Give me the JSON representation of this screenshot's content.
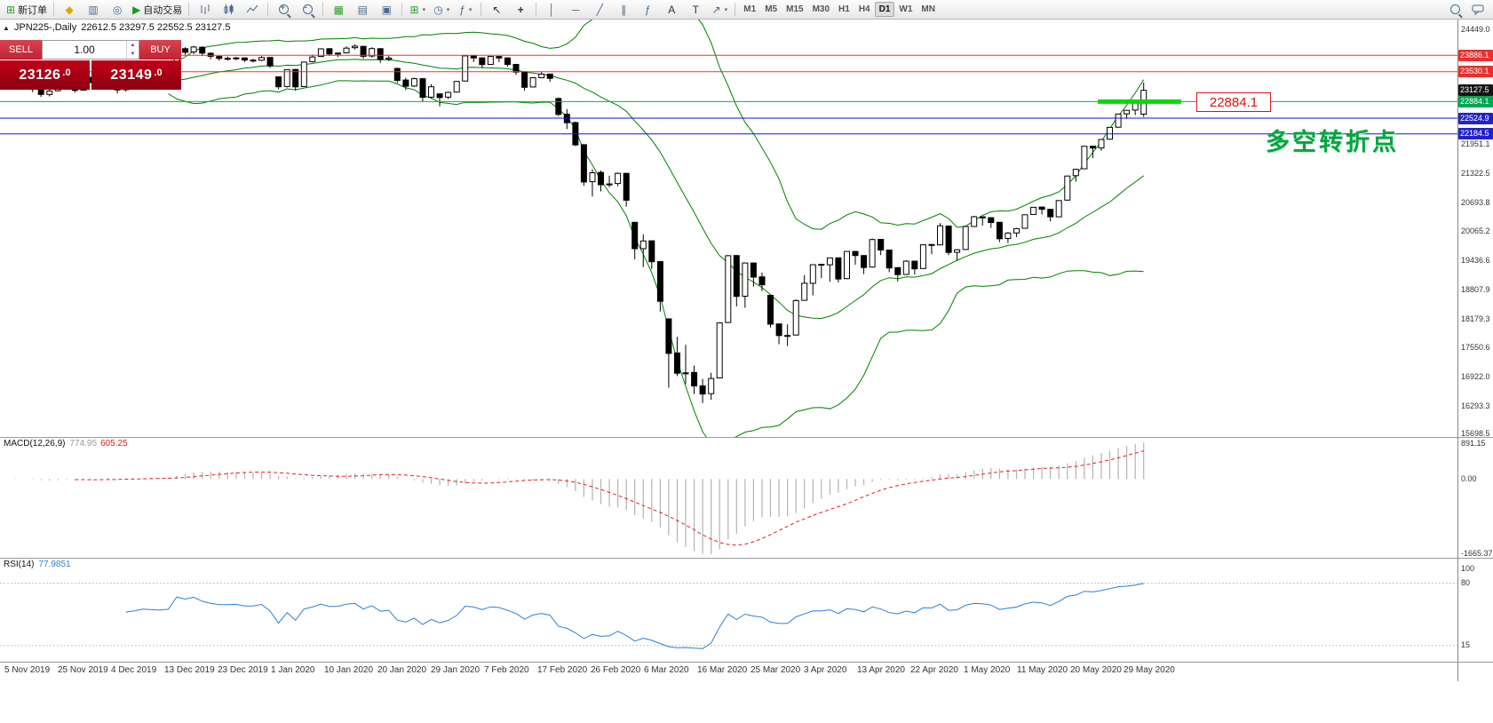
{
  "toolbar": {
    "new_order_label": "新订单",
    "autotrade_label": "自动交易",
    "timeframes": [
      "M1",
      "M5",
      "M15",
      "M30",
      "H1",
      "H4",
      "D1",
      "W1",
      "MN"
    ],
    "active_timeframe": "D1"
  },
  "chart_header": {
    "symbol_title": "JPN225-,Daily",
    "ohlc_text": "22612.5 23297.5 22552.5 23127.5"
  },
  "trade_panel": {
    "sell_label": "SELL",
    "buy_label": "BUY",
    "volume": "1.00",
    "sell_price_main": "23126",
    "sell_price_frac": ".0",
    "buy_price_main": "23149",
    "buy_price_frac": ".0"
  },
  "indicators": {
    "macd_name": "MACD(12,26,9)",
    "macd_main_value": "774.95",
    "macd_signal_value": "605.25",
    "rsi_name": "RSI(14)",
    "rsi_value": "77.9851"
  },
  "annotations": {
    "turning_point_text": "多空转折点",
    "price_callout": "22884.1"
  },
  "price_scale": {
    "ticks": [
      24449.0,
      21951.1,
      21322.5,
      20693.8,
      20065.2,
      19436.6,
      18807.9,
      18179.3,
      17550.6,
      16922.0,
      16293.3,
      15698.5
    ],
    "tags": [
      {
        "price": 23886.1,
        "label": "23886.1",
        "color": "#e83030"
      },
      {
        "price": 23530.1,
        "label": "23530.1",
        "color": "#e83030"
      },
      {
        "price": 23127.5,
        "label": "23127.5",
        "color": "#151515"
      },
      {
        "price": 22884.1,
        "label": "22884.1",
        "color": "#00a650"
      },
      {
        "price": 22524.9,
        "label": "22524.9",
        "color": "#2222cc"
      },
      {
        "price": 22184.5,
        "label": "22184.5",
        "color": "#2222cc"
      }
    ]
  },
  "levels": [
    {
      "price": 23886.1,
      "color": "#ff2a2a"
    },
    {
      "price": 23530.1,
      "color": "#ff2a2a"
    },
    {
      "price": 22884.1,
      "color": "#00b050"
    },
    {
      "price": 22524.9,
      "color": "#1414d8"
    },
    {
      "price": 22184.5,
      "color": "#1414d8"
    }
  ],
  "highlight_segment": {
    "price": 22884.1,
    "from_candle": 129,
    "to_candle": 138,
    "color": "#00dc00"
  },
  "date_axis": [
    "5 Nov 2019",
    "25 Nov 2019",
    "4 Dec 2019",
    "13 Dec 2019",
    "23 Dec 2019",
    "1 Jan 2020",
    "10 Jan 2020",
    "20 Jan 2020",
    "29 Jan 2020",
    "7 Feb 2020",
    "17 Feb 2020",
    "26 Feb 2020",
    "6 Mar 2020",
    "16 Mar 2020",
    "25 Mar 2020",
    "3 Apr 2020",
    "13 Apr 2020",
    "22 Apr 2020",
    "1 May 2020",
    "11 May 2020",
    "20 May 2020",
    "29 May 2020"
  ],
  "chart_data": {
    "type": "candlestick",
    "symbol": "JPN225-",
    "timeframe": "Daily",
    "last_bar": {
      "open": 22612.5,
      "high": 23297.5,
      "low": 22552.5,
      "close": 23127.5
    },
    "y_range": [
      15698.5,
      24449.0
    ],
    "overlays": {
      "bollinger": {
        "period": 20,
        "deviation": 2,
        "color": "#008000"
      }
    },
    "macd": {
      "params": [
        12,
        26,
        9
      ],
      "histogram_color": "#b2b2b2",
      "signal_color": "#e02020",
      "scale_labels": [
        "891.15",
        "0.00",
        "-1665.37"
      ]
    },
    "rsi": {
      "period": 14,
      "color": "#2e7fd4",
      "levels": [
        80,
        15
      ],
      "scale_labels": [
        "100",
        "80",
        "15"
      ]
    },
    "candles": [
      [
        23320,
        23430,
        23250,
        23303
      ],
      [
        23310,
        23440,
        23280,
        23417
      ],
      [
        23420,
        23450,
        23240,
        23293
      ],
      [
        23290,
        23310,
        23090,
        23149
      ],
      [
        23150,
        23180,
        22985,
        23038
      ],
      [
        23040,
        23140,
        22995,
        23113
      ],
      [
        23120,
        23310,
        23100,
        23293
      ],
      [
        23300,
        23400,
        23250,
        23373
      ],
      [
        23370,
        23390,
        23080,
        23126
      ],
      [
        23130,
        23420,
        23120,
        23409
      ],
      [
        23410,
        23430,
        23230,
        23294
      ],
      [
        23300,
        23540,
        23260,
        23529
      ],
      [
        23530,
        23550,
        23320,
        23380
      ],
      [
        23380,
        23390,
        23060,
        23135
      ],
      [
        23140,
        23330,
        23100,
        23300
      ],
      [
        23310,
        23390,
        23260,
        23354
      ],
      [
        23360,
        23460,
        23330,
        23430
      ],
      [
        23430,
        23450,
        23340,
        23410
      ],
      [
        23410,
        23440,
        23310,
        23392
      ],
      [
        23400,
        23480,
        23360,
        23425
      ],
      [
        23430,
        24050,
        23420,
        24023
      ],
      [
        24030,
        24060,
        23900,
        23952
      ],
      [
        23960,
        24091,
        23910,
        24066
      ],
      [
        24060,
        24080,
        23870,
        23934
      ],
      [
        23930,
        23950,
        23800,
        23864
      ],
      [
        23860,
        23880,
        23770,
        23817
      ],
      [
        23820,
        23860,
        23770,
        23821
      ],
      [
        23830,
        23850,
        23780,
        23830
      ],
      [
        23830,
        23840,
        23740,
        23783
      ],
      [
        23780,
        23810,
        23730,
        23782
      ],
      [
        23780,
        23870,
        23760,
        23838
      ],
      [
        23840,
        23850,
        23610,
        23657
      ],
      [
        23420,
        23430,
        23150,
        23205
      ],
      [
        23210,
        23580,
        23190,
        23575
      ],
      [
        23580,
        23590,
        23120,
        23204
      ],
      [
        23210,
        23750,
        23200,
        23740
      ],
      [
        23750,
        23900,
        23730,
        23851
      ],
      [
        23860,
        24040,
        23850,
        24025
      ],
      [
        24030,
        24040,
        23870,
        23916
      ],
      [
        23920,
        23950,
        23850,
        23933
      ],
      [
        23940,
        24080,
        23930,
        24041
      ],
      [
        24050,
        24120,
        24010,
        24083
      ],
      [
        24080,
        24090,
        23810,
        23864
      ],
      [
        23870,
        24060,
        23840,
        24031
      ],
      [
        24030,
        24040,
        23720,
        23795
      ],
      [
        23800,
        23880,
        23760,
        23827
      ],
      [
        23600,
        23620,
        23290,
        23343
      ],
      [
        23350,
        23400,
        23130,
        23215
      ],
      [
        23220,
        23400,
        23200,
        23379
      ],
      [
        23380,
        23390,
        22890,
        22977
      ],
      [
        22980,
        23260,
        22950,
        23205
      ],
      [
        23050,
        23060,
        22780,
        22972
      ],
      [
        22980,
        23100,
        22940,
        23084
      ],
      [
        23090,
        23330,
        23080,
        23320
      ],
      [
        23330,
        23880,
        23320,
        23874
      ],
      [
        23880,
        23890,
        23740,
        23828
      ],
      [
        23830,
        23840,
        23610,
        23686
      ],
      [
        23690,
        23870,
        23680,
        23861
      ],
      [
        23860,
        23870,
        23740,
        23828
      ],
      [
        23830,
        23840,
        23640,
        23688
      ],
      [
        23690,
        23700,
        23460,
        23523
      ],
      [
        23530,
        23540,
        23120,
        23193
      ],
      [
        23200,
        23410,
        23190,
        23400
      ],
      [
        23400,
        23540,
        23390,
        23479
      ],
      [
        23480,
        23490,
        23310,
        23387
      ],
      [
        22950,
        22970,
        22570,
        22605
      ],
      [
        22610,
        22720,
        22290,
        22426
      ],
      [
        22430,
        22450,
        21920,
        21948
      ],
      [
        21950,
        21960,
        21060,
        21143
      ],
      [
        21150,
        21420,
        20830,
        21344
      ],
      [
        21350,
        21390,
        20940,
        21082
      ],
      [
        21090,
        21280,
        21030,
        21100
      ],
      [
        21110,
        21350,
        21050,
        21329
      ],
      [
        21330,
        21340,
        20610,
        20750
      ],
      [
        20270,
        20280,
        19470,
        19699
      ],
      [
        19700,
        20010,
        19300,
        19867
      ],
      [
        19870,
        19880,
        19260,
        19416
      ],
      [
        19420,
        19430,
        18340,
        18560
      ],
      [
        18180,
        18190,
        16690,
        17431
      ],
      [
        17440,
        17790,
        16940,
        17002
      ],
      [
        17010,
        17620,
        16770,
        17011
      ],
      [
        17020,
        17170,
        16550,
        16727
      ],
      [
        16730,
        16880,
        16358,
        16553
      ],
      [
        16560,
        17010,
        16430,
        16888
      ],
      [
        16900,
        18100,
        16890,
        18092
      ],
      [
        18100,
        19560,
        18090,
        19546
      ],
      [
        19550,
        19560,
        18450,
        18665
      ],
      [
        18670,
        19400,
        18420,
        19389
      ],
      [
        19390,
        19400,
        18880,
        19085
      ],
      [
        19090,
        19180,
        18780,
        18917
      ],
      [
        18690,
        18700,
        17990,
        18065
      ],
      [
        18070,
        18080,
        17630,
        17819
      ],
      [
        17820,
        18060,
        17590,
        17820
      ],
      [
        17830,
        18600,
        17820,
        18576
      ],
      [
        18580,
        19130,
        18570,
        18950
      ],
      [
        18950,
        19360,
        18690,
        19353
      ],
      [
        19360,
        19370,
        19060,
        19346
      ],
      [
        19350,
        19500,
        18980,
        19499
      ],
      [
        19500,
        19510,
        18970,
        19043
      ],
      [
        19050,
        19650,
        19040,
        19639
      ],
      [
        19640,
        19650,
        19350,
        19551
      ],
      [
        19550,
        19560,
        19150,
        19290
      ],
      [
        19300,
        19920,
        19290,
        19897
      ],
      [
        19900,
        19910,
        19560,
        19669
      ],
      [
        19670,
        19680,
        19190,
        19281
      ],
      [
        19290,
        19300,
        18990,
        19138
      ],
      [
        19140,
        19450,
        19130,
        19429
      ],
      [
        19430,
        19440,
        19140,
        19262
      ],
      [
        19270,
        19790,
        19260,
        19783
      ],
      [
        19790,
        19800,
        19580,
        19771
      ],
      [
        19780,
        20250,
        19770,
        20194
      ],
      [
        20190,
        20200,
        19560,
        19619
      ],
      [
        19620,
        19690,
        19440,
        19675
      ],
      [
        19680,
        20190,
        19670,
        20179
      ],
      [
        20180,
        20410,
        20170,
        20391
      ],
      [
        20390,
        20400,
        20200,
        20366
      ],
      [
        20370,
        20380,
        20150,
        20267
      ],
      [
        20270,
        20280,
        19840,
        19914
      ],
      [
        19920,
        20060,
        19820,
        20037
      ],
      [
        20040,
        20150,
        19950,
        20134
      ],
      [
        20140,
        20440,
        20130,
        20433
      ],
      [
        20440,
        20600,
        20430,
        20595
      ],
      [
        20600,
        20610,
        20440,
        20552
      ],
      [
        20550,
        20560,
        20290,
        20388
      ],
      [
        20390,
        20750,
        20380,
        20741
      ],
      [
        20750,
        21280,
        20740,
        21271
      ],
      [
        21280,
        21430,
        21150,
        21419
      ],
      [
        21430,
        21920,
        21420,
        21916
      ],
      [
        21920,
        21930,
        21660,
        21878
      ],
      [
        21880,
        22070,
        21820,
        22062
      ],
      [
        22070,
        22330,
        22060,
        22326
      ],
      [
        22330,
        22620,
        22320,
        22614
      ],
      [
        22620,
        22700,
        22510,
        22696
      ],
      [
        22700,
        22870,
        22590,
        22864
      ],
      [
        22612.5,
        23297.5,
        22552.5,
        23127.5
      ]
    ]
  }
}
